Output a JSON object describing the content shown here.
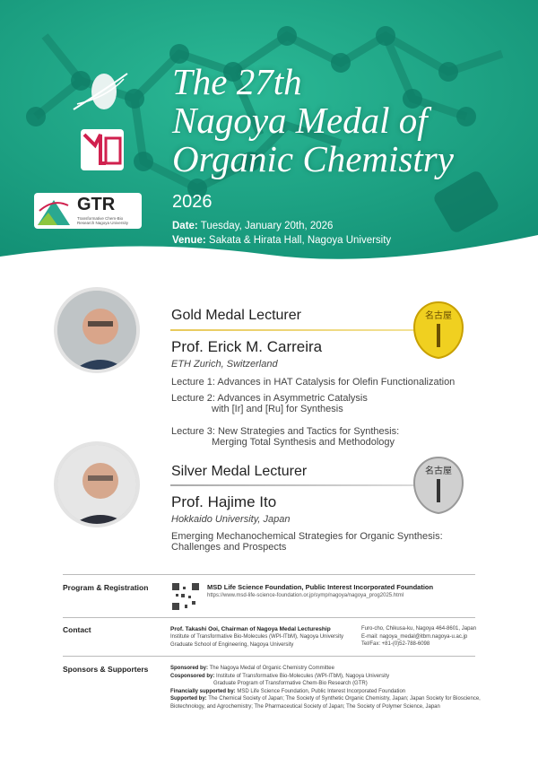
{
  "header": {
    "title_lines": [
      "The 27th",
      "Nagoya Medal of",
      "Organic Chemistry"
    ],
    "year": "2026",
    "date_label": "Date:",
    "date": "Tuesday, January 20th, 2026",
    "venue_label": "Venue:",
    "venue": "Sakata & Hirata Hall, Nagoya University",
    "logos": [
      "ITbM",
      "GTR"
    ],
    "gtr_sub": "Transformative Chem-Bio Research Nagoya University",
    "colors": {
      "green": "#1ba385",
      "dark": "#0f7f68"
    }
  },
  "gold": {
    "role": "Gold Medal Lecturer",
    "name": "Prof. Erick M. Carreira",
    "affiliation": "ETH Zurich, Switzerland",
    "lectures": [
      "Lecture 1: Advances in HAT Catalysis for Olefin Functionalization",
      "Lecture 2: Advances in Asymmetric Catalysis",
      "with [Ir] and [Ru] for Synthesis",
      "Lecture 3: New Strategies and Tactics for Synthesis:",
      "Merging Total Synthesis and Methodology"
    ],
    "medal_text": "名古屋"
  },
  "silver": {
    "role": "Silver Medal Lecturer",
    "name": "Prof. Hajime Ito",
    "affiliation": "Hokkaido University, Japan",
    "lectures": [
      "Emerging Mechanochemical Strategies for Organic Synthesis:",
      "Challenges and Prospects"
    ],
    "medal_text": "名古屋"
  },
  "program": {
    "label": "Program & Registration",
    "org": "MSD Life Science Foundation, Public Interest Incorporated Foundation",
    "url": "https://www.msd-life-science-foundation.or.jp/symp/nagoya/nagoya_prog2025.html"
  },
  "contact": {
    "label": "Contact",
    "name": "Prof. Takashi Ooi, Chairman of Nagoya Medal Lectureship",
    "lines": [
      "Institute of Transformative Bio-Molecules (WPI-ITbM), Nagoya University",
      "Graduate School of Engineering, Nagoya University"
    ],
    "address": "Furo-cho, Chikusa-ku, Nagoya 464-8601, Japan",
    "email": "E-mail: nagoya_medal@itbm.nagoya-u.ac.jp",
    "tel": "Tel/Fax: +81-(0)52-788-6098"
  },
  "sponsors": {
    "label": "Sponsors & Supporters",
    "items": [
      {
        "k": "Sponsored by:",
        "v": "The Nagoya Medal of Organic Chemistry Committee"
      },
      {
        "k": "Cosponsored by:",
        "v": "Institute of Transformative Bio-Molecules (WPI-ITbM), Nagoya University"
      },
      {
        "k": "",
        "v": "Graduate Program of Transformative Chem-Bio Research (GTR)"
      },
      {
        "k": "Financially supported by:",
        "v": "MSD Life Science Foundation, Public Interest Incorporated Foundation"
      },
      {
        "k": "Supported by:",
        "v": "The Chemical Society of Japan; The Society of Synthetic Organic Chemistry, Japan;  Japan Society for Bioscience, Biotechnology, and Agrochemistry; The Pharmaceutical Society of Japan; The Society of Polymer Science, Japan"
      }
    ]
  }
}
